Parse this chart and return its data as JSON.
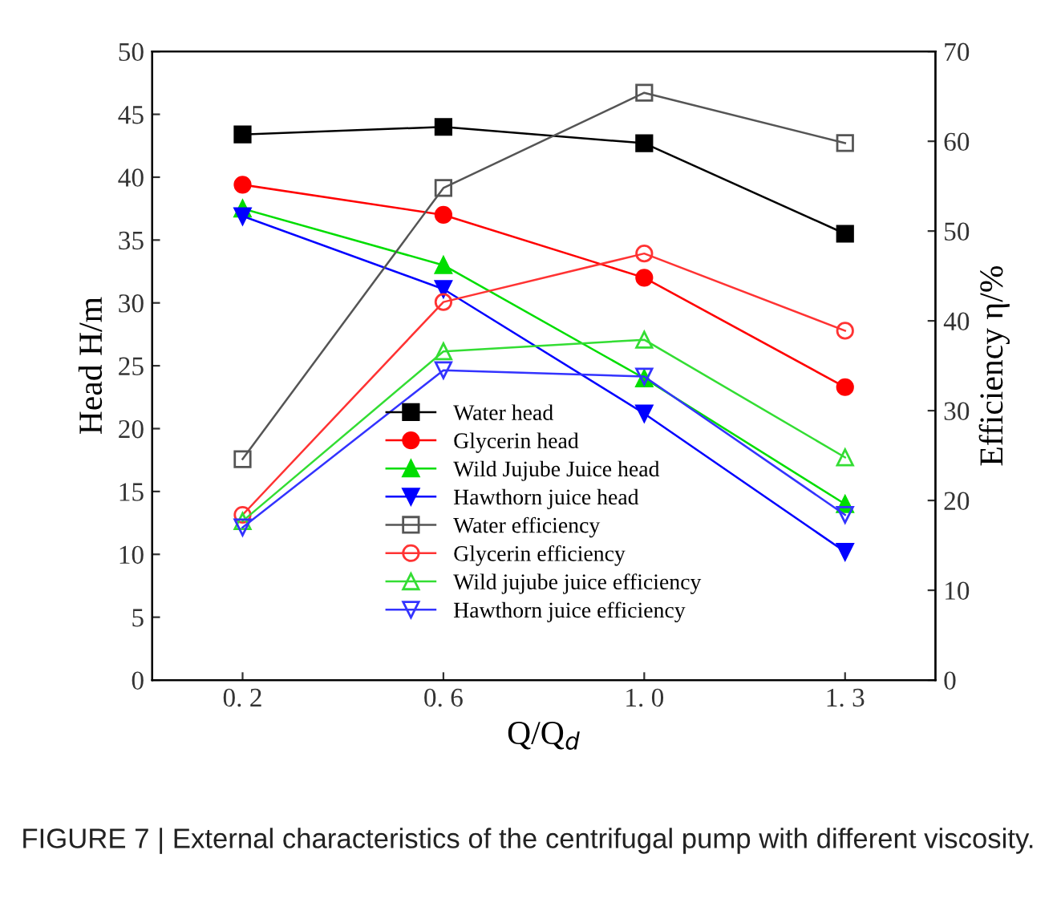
{
  "chart_data": {
    "type": "line",
    "xlabel": "Q/Q$_{d}$",
    "ylabel": "Head H/m",
    "y2label": "Efficiency η/%",
    "categories": [
      "0. 2",
      "0. 6",
      "1. 0",
      "1. 3"
    ],
    "ylim": [
      0,
      50
    ],
    "yticks": [
      0,
      5,
      10,
      15,
      20,
      25,
      30,
      35,
      40,
      45,
      50
    ],
    "y2lim": [
      0,
      70
    ],
    "y2ticks": [
      0,
      10,
      20,
      30,
      40,
      50,
      60,
      70
    ],
    "legend": "bottom",
    "grid": false,
    "series": [
      {
        "name": "Water head",
        "color": "#000000",
        "marker": "square",
        "values": [
          43.4,
          44.0,
          42.7,
          35.5
        ]
      },
      {
        "name": "Glycerin head",
        "color": "#ff0000",
        "marker": "circle",
        "values": [
          39.4,
          37.0,
          32.0,
          23.3
        ]
      },
      {
        "name": "Wild Jujube Juice head",
        "color": "#00dd00",
        "marker": "triangle",
        "values": [
          37.5,
          33.0,
          24.0,
          14.0
        ]
      },
      {
        "name": "Hawthorn juice head",
        "color": "#0000ff",
        "marker": "triangle_down",
        "values": [
          36.9,
          31.1,
          21.2,
          10.2
        ]
      },
      {
        "name": "Water efficiency",
        "color": "#555555",
        "marker": "square",
        "axis": "y2",
        "values": [
          24.6,
          54.8,
          65.4,
          59.8
        ]
      },
      {
        "name": "Glycerin efficiency",
        "color": "#ff3333",
        "marker": "circle",
        "axis": "y2",
        "values": [
          18.4,
          42.1,
          47.5,
          38.9
        ]
      },
      {
        "name": "Wild jujube juice efficiency",
        "color": "#33dd33",
        "marker": "triangle",
        "axis": "y2",
        "values": [
          17.7,
          36.6,
          37.9,
          24.8
        ]
      },
      {
        "name": "Hawthorn juice efficiency",
        "color": "#3333ff",
        "marker": "triangle_down",
        "axis": "y2",
        "values": [
          17.0,
          34.5,
          33.8,
          18.4
        ]
      }
    ],
    "annotations": [
      "FIGURE 7 | External characteristics of the centrifugal pump with different viscosity."
    ]
  }
}
